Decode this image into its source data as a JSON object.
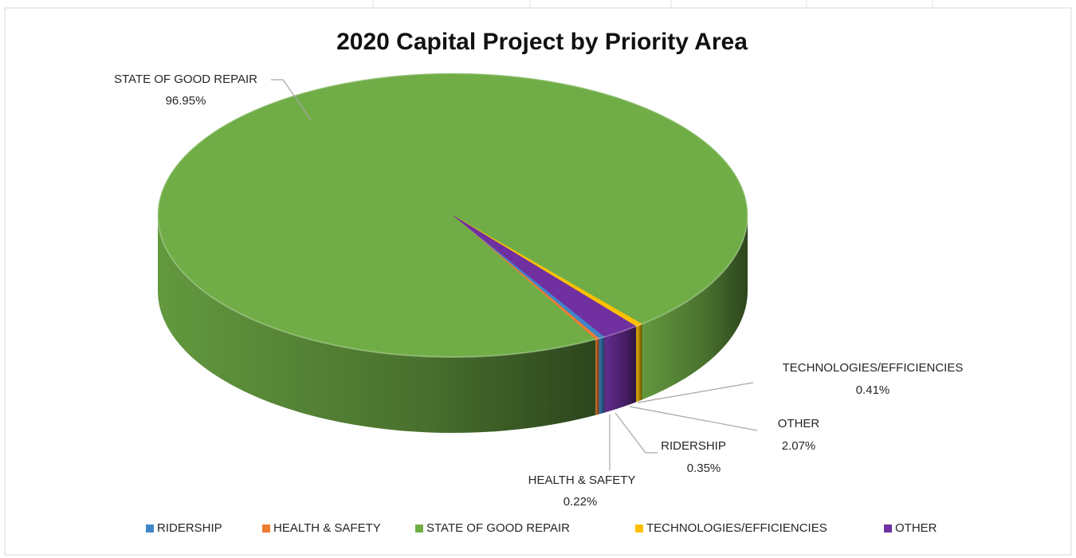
{
  "chart_data": {
    "type": "pie",
    "title": "2020 Capital Project by Priority Area",
    "categories": [
      "RIDERSHIP",
      "HEALTH & SAFETY",
      "STATE OF GOOD REPAIR",
      "TECHNOLOGIES/EFFICIENCIES",
      "OTHER"
    ],
    "values": [
      0.35,
      0.22,
      96.95,
      0.41,
      2.07
    ],
    "value_labels": [
      "0.35%",
      "0.22%",
      "96.95%",
      "0.41%",
      "2.07%"
    ],
    "colors": [
      "#3f86c8",
      "#ed7d31",
      "#70ad47",
      "#ffc000",
      "#7030a0"
    ],
    "legend": "bottom"
  }
}
